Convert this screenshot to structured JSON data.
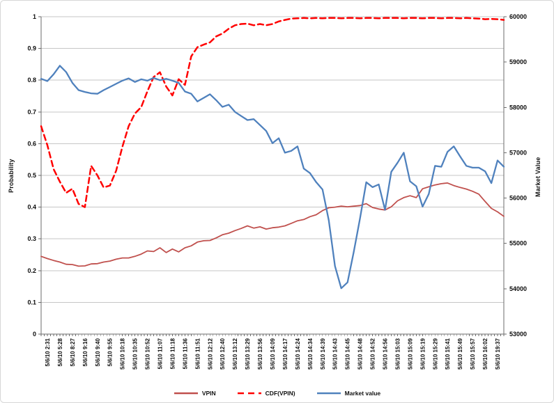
{
  "chart_data": {
    "type": "line",
    "title": "",
    "left_axis": {
      "label": "Probability",
      "min": 0,
      "max": 1,
      "tick_step": 0.1,
      "tick_labels": [
        "1",
        "0.9",
        "0.8",
        "0.7",
        "0.6",
        "0.5",
        "0.4",
        "0.3",
        "0.2",
        "0.1",
        "0"
      ]
    },
    "right_axis": {
      "label": "Market Value",
      "min": 53000,
      "max": 60000,
      "tick_step": 1000,
      "tick_labels": [
        "60000",
        "59000",
        "58000",
        "57000",
        "56000",
        "55000",
        "54000",
        "53000"
      ]
    },
    "x_tick_labels": [
      "5/6/10 2:31",
      "5/6/10 5:28",
      "5/6/10 8:27",
      "5/6/10 9:16",
      "5/6/10 9:40",
      "5/6/10 9:55",
      "5/6/10 10:18",
      "5/6/10 10:35",
      "5/6/10 10:52",
      "5/6/10 11:07",
      "5/6/10 11:18",
      "5/6/10 11:36",
      "5/6/10 11:51",
      "5/6/10 12:12",
      "5/6/10 12:40",
      "5/6/10 13:12",
      "5/6/10 13:29",
      "5/6/10 13:56",
      "5/6/10 14:09",
      "5/6/10 14:17",
      "5/6/10 14:24",
      "5/6/10 14:34",
      "5/6/10 14:39",
      "5/6/10 14:43",
      "5/6/10 14:45",
      "5/6/10 14:48",
      "5/6/10 14:52",
      "5/6/10 14:56",
      "5/6/10 15:03",
      "5/6/10 15:09",
      "5/6/10 15:19",
      "5/6/10 15:29",
      "5/6/10 15:41",
      "5/6/10 15:49",
      "5/6/10 15:57",
      "5/6/10 16:02",
      "5/6/10 19:37"
    ],
    "grid": true,
    "legend_position": "bottom",
    "series": [
      {
        "name": "VPIN",
        "color": "#C0504D",
        "dash": "solid",
        "width": 1.8,
        "axis": "left",
        "values": [
          0.245,
          0.238,
          0.232,
          0.227,
          0.22,
          0.219,
          0.214,
          0.215,
          0.221,
          0.222,
          0.227,
          0.23,
          0.236,
          0.24,
          0.24,
          0.245,
          0.252,
          0.262,
          0.26,
          0.272,
          0.257,
          0.268,
          0.259,
          0.272,
          0.278,
          0.29,
          0.294,
          0.295,
          0.303,
          0.313,
          0.318,
          0.326,
          0.333,
          0.341,
          0.334,
          0.338,
          0.331,
          0.335,
          0.337,
          0.341,
          0.349,
          0.357,
          0.361,
          0.37,
          0.376,
          0.389,
          0.398,
          0.4,
          0.403,
          0.401,
          0.403,
          0.405,
          0.411,
          0.399,
          0.394,
          0.391,
          0.401,
          0.42,
          0.43,
          0.436,
          0.43,
          0.458,
          0.464,
          0.47,
          0.474,
          0.476,
          0.468,
          0.462,
          0.457,
          0.45,
          0.441,
          0.418,
          0.396,
          0.385,
          0.371
        ]
      },
      {
        "name": "CDF(VPIN)",
        "color": "#FF0000",
        "dash": "dashed",
        "width": 2.5,
        "axis": "left",
        "values": [
          0.655,
          0.595,
          0.52,
          0.48,
          0.445,
          0.458,
          0.41,
          0.4,
          0.53,
          0.5,
          0.462,
          0.468,
          0.515,
          0.59,
          0.655,
          0.695,
          0.715,
          0.765,
          0.81,
          0.825,
          0.78,
          0.752,
          0.803,
          0.785,
          0.875,
          0.904,
          0.912,
          0.919,
          0.938,
          0.947,
          0.962,
          0.973,
          0.977,
          0.978,
          0.973,
          0.977,
          0.973,
          0.977,
          0.985,
          0.99,
          0.994,
          0.995,
          0.996,
          0.995,
          0.996,
          0.995,
          0.996,
          0.996,
          0.995,
          0.996,
          0.996,
          0.995,
          0.996,
          0.996,
          0.995,
          0.996,
          0.996,
          0.996,
          0.995,
          0.996,
          0.996,
          0.995,
          0.996,
          0.996,
          0.995,
          0.996,
          0.996,
          0.995,
          0.996,
          0.995,
          0.994,
          0.992,
          0.993,
          0.992,
          0.99
        ]
      },
      {
        "name": "Market value",
        "color": "#4F81BD",
        "dash": "solid",
        "width": 2.3,
        "axis": "right",
        "values": [
          58630,
          58580,
          58730,
          58920,
          58780,
          58540,
          58380,
          58340,
          58310,
          58300,
          58380,
          58450,
          58520,
          58590,
          58640,
          58560,
          58620,
          58590,
          58650,
          58600,
          58630,
          58590,
          58540,
          58350,
          58300,
          58130,
          58210,
          58290,
          58160,
          58010,
          58060,
          57900,
          57810,
          57720,
          57740,
          57610,
          57480,
          57210,
          57320,
          57000,
          57040,
          57140,
          56650,
          56550,
          56350,
          56190,
          55510,
          54500,
          54010,
          54140,
          54810,
          55550,
          56350,
          56240,
          56300,
          55740,
          56580,
          56780,
          57000,
          56370,
          56260,
          55810,
          56090,
          56710,
          56690,
          57020,
          57140,
          56920,
          56710,
          56670,
          56670,
          56590,
          56330,
          56830,
          56690
        ]
      }
    ]
  }
}
